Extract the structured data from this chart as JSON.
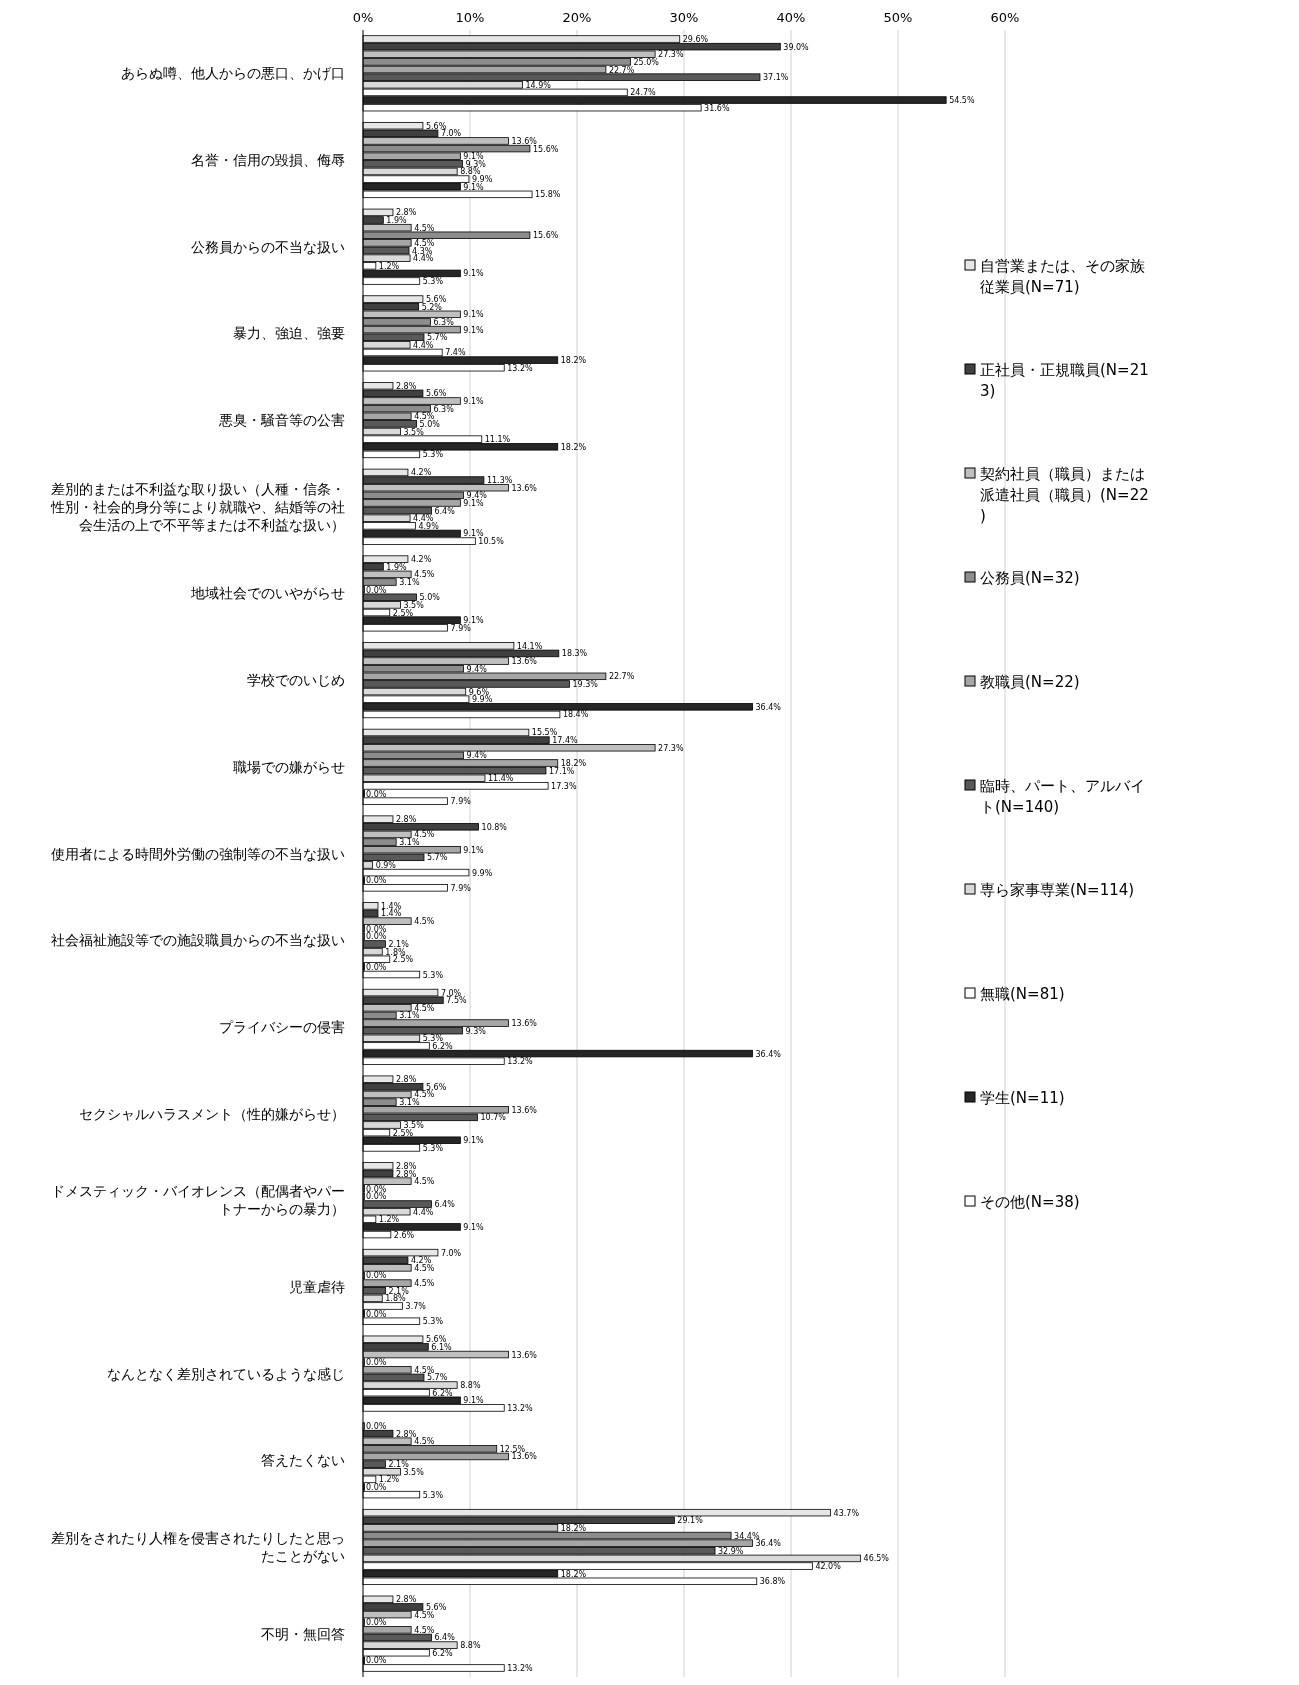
{
  "chart_data": {
    "type": "bar",
    "orientation": "horizontal",
    "grid": "x",
    "legend": "right",
    "xlim": [
      0,
      60
    ],
    "xticks": [
      {
        "value": 0,
        "label": "0%"
      },
      {
        "value": 10,
        "label": "10%"
      },
      {
        "value": 20,
        "label": "20%"
      },
      {
        "value": 30,
        "label": "30%"
      },
      {
        "value": 40,
        "label": "40%"
      },
      {
        "value": 50,
        "label": "50%"
      },
      {
        "value": 60,
        "label": "60%"
      }
    ],
    "categories": [
      "あらぬ噂、他人からの悪口、かげ口",
      "名誉・信用の毀損、侮辱",
      "公務員からの不当な扱い",
      "暴力、強迫、強要",
      "悪臭・騒音等の公害",
      "差別的または不利益な取り扱い（人種・信条・性別・社会的身分等により就職や、結婚等の社会生活の上で不平等または不利益な扱い）",
      "地域社会でのいやがらせ",
      "学校でのいじめ",
      "職場での嫌がらせ",
      "使用者による時間外労働の強制等の不当な扱い",
      "社会福祉施設等での施設職員からの不当な扱い",
      "プライバシーの侵害",
      "セクシャルハラスメント（性的嫌がらせ）",
      "ドメスティック・バイオレンス（配偶者やパートナーからの暴力）",
      "児童虐待",
      "なんとなく差別されているような感じ",
      "答えたくない",
      "差別をされたり人権を侵害されたりしたと思ったことがない",
      "不明・無回答"
    ],
    "series": [
      {
        "name": "自営業または、その家族従業員(N=71)",
        "color": "#e6e6e6",
        "values": [
          29.6,
          5.6,
          2.8,
          5.6,
          2.8,
          4.2,
          4.2,
          14.1,
          15.5,
          2.8,
          1.4,
          7.0,
          2.8,
          2.8,
          7.0,
          5.6,
          0.0,
          43.7,
          2.8
        ],
        "value_labels": [
          "29.6%",
          "5.6%",
          "2.8%",
          "5.6%",
          "2.8%",
          "4.2%",
          "4.2%",
          "14.1%",
          "15.5%",
          "2.8%",
          "1.4%",
          "7.0%",
          "2.8%",
          "2.8%",
          "7.0%",
          "5.6%",
          "0.0%",
          "43.7%",
          "2.8%"
        ]
      },
      {
        "name": "正社員・正規職員(N=213)",
        "color": "#404040",
        "values": [
          39.0,
          7.0,
          1.9,
          5.2,
          5.6,
          11.3,
          1.9,
          18.3,
          17.4,
          10.8,
          1.4,
          7.5,
          5.6,
          2.8,
          4.2,
          6.1,
          2.8,
          29.1,
          5.6
        ],
        "value_labels": [
          "39.0%",
          "7.0%",
          "1.9%",
          "5.2%",
          "5.6%",
          "11.3%",
          "1.9%",
          "18.3%",
          "17.4%",
          "10.8%",
          "1.4%",
          "7.5%",
          "5.6%",
          "2.8%",
          "4.2%",
          "6.1%",
          "2.8%",
          "29.1%",
          "5.6%"
        ]
      },
      {
        "name": "契約社員（職員）または派遣社員（職員）(N=22)",
        "color": "#bfbfbf",
        "values": [
          27.3,
          13.6,
          4.5,
          9.1,
          9.1,
          13.6,
          4.5,
          13.6,
          27.3,
          4.5,
          4.5,
          4.5,
          4.5,
          4.5,
          4.5,
          13.6,
          4.5,
          18.2,
          4.5
        ],
        "value_labels": [
          "27.3%",
          "13.6%",
          "4.5%",
          "9.1%",
          "9.1%",
          "13.6%",
          "4.5%",
          "13.6%",
          "27.3%",
          "4.5%",
          "4.5%",
          "4.5%",
          "4.5%",
          "4.5%",
          "4.5%",
          "13.6%",
          "4.5%",
          "18.2%",
          "4.5%"
        ]
      },
      {
        "name": "公務員(N=32)",
        "color": "#8c8c8c",
        "values": [
          25.0,
          15.6,
          15.6,
          6.3,
          6.3,
          9.4,
          3.1,
          9.4,
          9.4,
          3.1,
          0.0,
          3.1,
          3.1,
          0.0,
          0.0,
          0.0,
          12.5,
          34.4,
          0.0
        ],
        "value_labels": [
          "25.0%",
          "15.6%",
          "15.6%",
          "6.3%",
          "6.3%",
          "9.4%",
          "3.1%",
          "9.4%",
          "9.4%",
          "3.1%",
          "0.0%",
          "3.1%",
          "3.1%",
          "0.0%",
          "0.0%",
          "0.0%",
          "12.5%",
          "34.4%",
          "0.0%"
        ]
      },
      {
        "name": "教職員(N=22)",
        "color": "#a6a6a6",
        "values": [
          22.7,
          9.1,
          4.5,
          9.1,
          4.5,
          9.1,
          0.0,
          22.7,
          18.2,
          9.1,
          0.0,
          13.6,
          13.6,
          0.0,
          4.5,
          4.5,
          13.6,
          36.4,
          4.5
        ],
        "value_labels": [
          "22.7%",
          "9.1%",
          "4.5%",
          "9.1%",
          "4.5%",
          "9.1%",
          "0.0%",
          "22.7%",
          "18.2%",
          "9.1%",
          "0.0%",
          "13.6%",
          "13.6%",
          "0.0%",
          "4.5%",
          "4.5%",
          "13.6%",
          "36.4%",
          "4.5%"
        ]
      },
      {
        "name": "臨時、パート、アルバイト(N=140)",
        "color": "#595959",
        "values": [
          37.1,
          9.3,
          4.3,
          5.7,
          5.0,
          6.4,
          5.0,
          19.3,
          17.1,
          5.7,
          2.1,
          9.3,
          10.7,
          6.4,
          2.1,
          5.7,
          2.1,
          32.9,
          6.4
        ],
        "value_labels": [
          "37.1%",
          "9.3%",
          "4.3%",
          "5.7%",
          "5.0%",
          "6.4%",
          "5.0%",
          "19.3%",
          "17.1%",
          "5.7%",
          "2.1%",
          "9.3%",
          "10.7%",
          "6.4%",
          "2.1%",
          "5.7%",
          "2.1%",
          "32.9%",
          "6.4%"
        ]
      },
      {
        "name": "専ら家事専業(N=114)",
        "color": "#d9d9d9",
        "values": [
          14.9,
          8.8,
          4.4,
          4.4,
          3.5,
          4.4,
          3.5,
          9.6,
          11.4,
          0.9,
          1.8,
          5.3,
          3.5,
          4.4,
          1.8,
          8.8,
          3.5,
          46.5,
          8.8
        ],
        "value_labels": [
          "14.9%",
          "8.8%",
          "4.4%",
          "4.4%",
          "3.5%",
          "4.4%",
          "3.5%",
          "9.6%",
          "11.4%",
          "0.9%",
          "1.8%",
          "5.3%",
          "3.5%",
          "4.4%",
          "1.8%",
          "8.8%",
          "3.5%",
          "46.5%",
          "8.8%"
        ]
      },
      {
        "name": "無職(N=81)",
        "color": "#ffffff",
        "values": [
          24.7,
          9.9,
          1.2,
          7.4,
          11.1,
          4.9,
          2.5,
          9.9,
          17.3,
          9.9,
          2.5,
          6.2,
          2.5,
          1.2,
          3.7,
          6.2,
          1.2,
          42.0,
          6.2
        ],
        "value_labels": [
          "24.7%",
          "9.9%",
          "1.2%",
          "7.4%",
          "11.1%",
          "4.9%",
          "2.5%",
          "9.9%",
          "17.3%",
          "9.9%",
          "2.5%",
          "6.2%",
          "2.5%",
          "1.2%",
          "3.7%",
          "6.2%",
          "1.2%",
          "42.0%",
          "6.2%"
        ]
      },
      {
        "name": "学生(N=11)",
        "color": "#262626",
        "values": [
          54.5,
          9.1,
          9.1,
          18.2,
          18.2,
          9.1,
          9.1,
          36.4,
          0.0,
          0.0,
          0.0,
          36.4,
          9.1,
          9.1,
          0.0,
          9.1,
          0.0,
          18.2,
          0.0
        ],
        "value_labels": [
          "54.5%",
          "9.1%",
          "9.1%",
          "18.2%",
          "18.2%",
          "9.1%",
          "9.1%",
          "36.4%",
          "0.0%",
          "0.0%",
          "0.0%",
          "36.4%",
          "9.1%",
          "9.1%",
          "0.0%",
          "9.1%",
          "0.0%",
          "18.2%",
          "0.0%"
        ]
      },
      {
        "name": "その他(N=38)",
        "color": "#ffffff",
        "values": [
          31.6,
          15.8,
          5.3,
          13.2,
          5.3,
          10.5,
          7.9,
          18.4,
          7.9,
          7.9,
          5.3,
          13.2,
          5.3,
          2.6,
          5.3,
          13.2,
          5.3,
          36.8,
          13.2
        ],
        "value_labels": [
          "31.6%",
          "15.8%",
          "5.3%",
          "13.2%",
          "5.3%",
          "10.5%",
          "7.9%",
          "18.4%",
          "7.9%",
          "7.9%",
          "5.3%",
          "13.2%",
          "5.3%",
          "2.6%",
          "5.3%",
          "13.2%",
          "5.3%",
          "36.8%",
          "13.2%"
        ]
      }
    ]
  }
}
